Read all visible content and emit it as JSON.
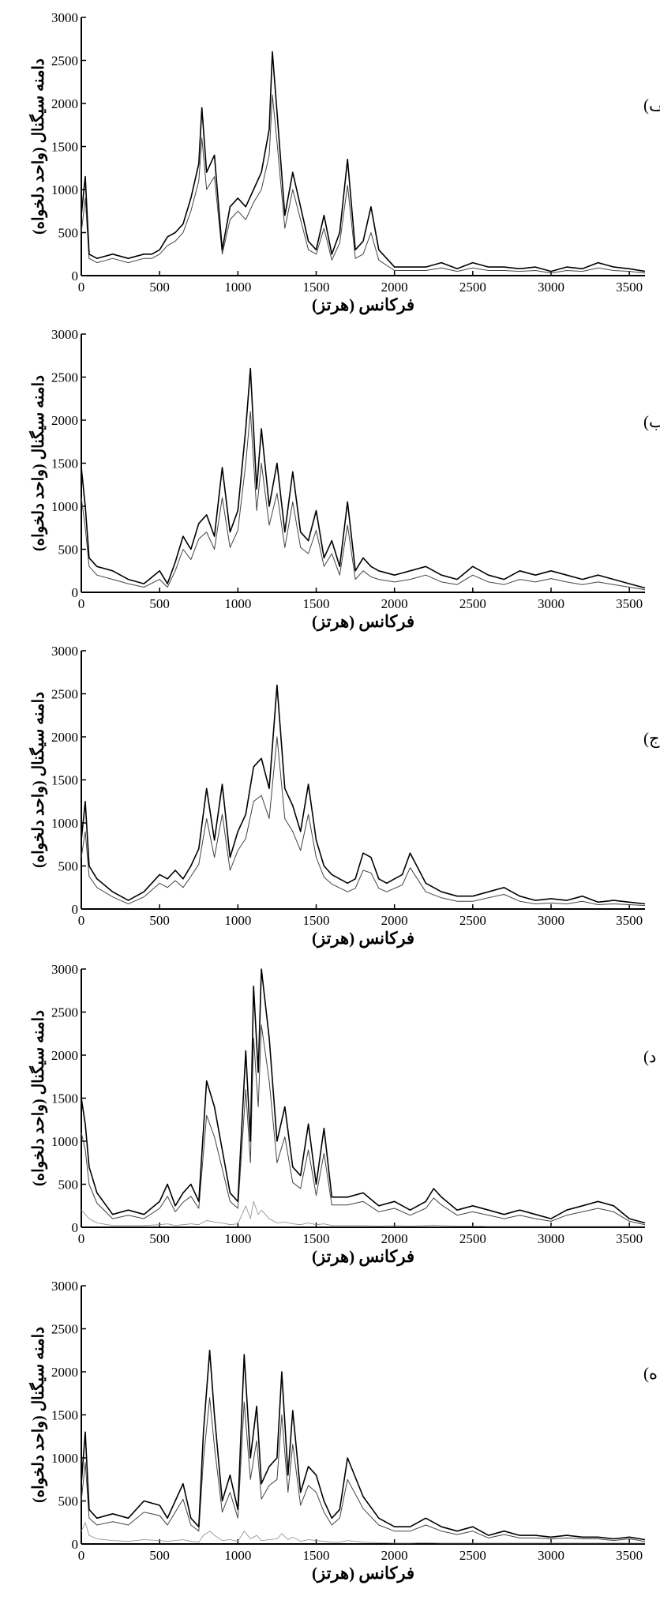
{
  "figure": {
    "y_label": "دامنه سیگنال (واحد دلخواه)",
    "x_label": "فرکانس (هرتز)"
  },
  "chart_data": [
    {
      "type": "line",
      "panel_label": "الف)",
      "xlabel": "فرکانس (هرتز)",
      "ylabel": "دامنه سیگنال (واحد دلخواه)",
      "xlim": [
        0,
        3600
      ],
      "ylim": [
        0,
        3000
      ],
      "xticks": [
        0,
        500,
        1000,
        1500,
        2000,
        2500,
        3000,
        3500
      ],
      "yticks": [
        0,
        500,
        1000,
        1500,
        2000,
        2500,
        3000
      ],
      "grid": false,
      "x": [
        0,
        25,
        50,
        100,
        200,
        300,
        400,
        450,
        500,
        550,
        600,
        650,
        700,
        750,
        770,
        800,
        850,
        900,
        950,
        1000,
        1050,
        1100,
        1150,
        1200,
        1220,
        1250,
        1300,
        1350,
        1400,
        1450,
        1500,
        1550,
        1600,
        1650,
        1700,
        1750,
        1800,
        1850,
        1900,
        2000,
        2100,
        2200,
        2300,
        2400,
        2500,
        2600,
        2700,
        2800,
        2900,
        3000,
        3100,
        3200,
        3300,
        3400,
        3500,
        3600
      ],
      "series": [
        {
          "values": [
            700,
            1150,
            250,
            200,
            250,
            200,
            250,
            250,
            300,
            450,
            500,
            600,
            900,
            1300,
            1950,
            1200,
            1400,
            300,
            800,
            900,
            800,
            1000,
            1200,
            1700,
            2600,
            1900,
            700,
            1200,
            800,
            400,
            300,
            700,
            250,
            500,
            1350,
            300,
            400,
            800,
            300,
            100,
            100,
            100,
            150,
            80,
            150,
            100,
            100,
            80,
            100,
            50,
            100,
            80,
            150,
            100,
            80,
            50
          ]
        },
        {
          "values": [
            500,
            900,
            200,
            150,
            200,
            150,
            200,
            200,
            250,
            350,
            400,
            500,
            750,
            1100,
            1600,
            1000,
            1150,
            250,
            650,
            750,
            650,
            850,
            1000,
            1400,
            2100,
            1550,
            550,
            1000,
            650,
            300,
            250,
            550,
            180,
            380,
            1050,
            200,
            250,
            500,
            180,
            60,
            60,
            60,
            90,
            50,
            90,
            60,
            60,
            50,
            60,
            30,
            60,
            50,
            90,
            60,
            50,
            30
          ]
        }
      ]
    },
    {
      "type": "line",
      "panel_label": "ب)",
      "xlabel": "فرکانس (هرتز)",
      "ylabel": "دامنه سیگنال (واحد دلخواه)",
      "xlim": [
        0,
        3600
      ],
      "ylim": [
        0,
        3000
      ],
      "xticks": [
        0,
        500,
        1000,
        1500,
        2000,
        2500,
        3000,
        3500
      ],
      "yticks": [
        0,
        500,
        1000,
        1500,
        2000,
        2500,
        3000
      ],
      "grid": false,
      "x": [
        0,
        25,
        50,
        100,
        200,
        300,
        400,
        500,
        550,
        600,
        650,
        700,
        750,
        800,
        850,
        900,
        950,
        1000,
        1050,
        1080,
        1120,
        1150,
        1200,
        1250,
        1300,
        1350,
        1400,
        1450,
        1500,
        1550,
        1600,
        1650,
        1700,
        1750,
        1800,
        1850,
        1900,
        2000,
        2100,
        2200,
        2300,
        2400,
        2500,
        2600,
        2700,
        2800,
        2900,
        3000,
        3100,
        3200,
        3300,
        3400,
        3500,
        3600
      ],
      "series": [
        {
          "values": [
            1450,
            1000,
            400,
            300,
            250,
            150,
            100,
            250,
            100,
            350,
            650,
            500,
            800,
            900,
            650,
            1450,
            700,
            950,
            1900,
            2600,
            1200,
            1900,
            1000,
            1500,
            700,
            1400,
            700,
            600,
            950,
            400,
            600,
            300,
            1050,
            250,
            400,
            300,
            250,
            200,
            250,
            300,
            200,
            150,
            300,
            200,
            150,
            250,
            200,
            250,
            200,
            150,
            200,
            150,
            100,
            50
          ]
        },
        {
          "values": [
            1100,
            750,
            300,
            200,
            150,
            100,
            60,
            150,
            60,
            250,
            500,
            380,
            620,
            700,
            500,
            1100,
            520,
            720,
            1500,
            2100,
            950,
            1500,
            780,
            1150,
            520,
            1050,
            520,
            450,
            720,
            300,
            450,
            200,
            780,
            150,
            250,
            180,
            150,
            120,
            150,
            200,
            120,
            90,
            200,
            120,
            90,
            150,
            120,
            160,
            120,
            90,
            120,
            90,
            60,
            30
          ]
        }
      ]
    },
    {
      "type": "line",
      "panel_label": "ج)",
      "xlabel": "فرکانس (هرتز)",
      "ylabel": "دامنه سیگنال (واحد دلخواه)",
      "xlim": [
        0,
        3600
      ],
      "ylim": [
        0,
        3000
      ],
      "xticks": [
        0,
        500,
        1000,
        1500,
        2000,
        2500,
        3000,
        3500
      ],
      "yticks": [
        0,
        500,
        1000,
        1500,
        2000,
        2500,
        3000
      ],
      "grid": false,
      "x": [
        0,
        25,
        50,
        100,
        200,
        300,
        400,
        500,
        550,
        600,
        650,
        700,
        750,
        800,
        850,
        900,
        950,
        1000,
        1050,
        1100,
        1150,
        1200,
        1250,
        1300,
        1350,
        1400,
        1450,
        1500,
        1550,
        1600,
        1700,
        1750,
        1800,
        1850,
        1900,
        1950,
        2000,
        2050,
        2100,
        2200,
        2300,
        2400,
        2500,
        2600,
        2700,
        2800,
        2900,
        3000,
        3100,
        3200,
        3300,
        3400,
        3500,
        3600
      ],
      "series": [
        {
          "values": [
            800,
            1250,
            500,
            350,
            200,
            100,
            200,
            400,
            350,
            450,
            350,
            500,
            700,
            1400,
            800,
            1450,
            600,
            900,
            1100,
            1650,
            1750,
            1400,
            2600,
            1400,
            1200,
            900,
            1450,
            800,
            500,
            400,
            300,
            350,
            650,
            600,
            350,
            300,
            350,
            400,
            650,
            300,
            200,
            150,
            150,
            200,
            250,
            150,
            100,
            120,
            100,
            150,
            80,
            100,
            80,
            60
          ]
        },
        {
          "values": [
            600,
            900,
            380,
            250,
            140,
            60,
            140,
            300,
            250,
            330,
            250,
            380,
            520,
            1050,
            600,
            1100,
            450,
            680,
            820,
            1250,
            1320,
            1050,
            2000,
            1050,
            900,
            680,
            1100,
            600,
            370,
            290,
            200,
            240,
            450,
            420,
            240,
            200,
            240,
            280,
            480,
            200,
            130,
            90,
            90,
            130,
            170,
            90,
            60,
            70,
            60,
            90,
            50,
            60,
            50,
            40
          ]
        }
      ]
    },
    {
      "type": "line",
      "panel_label": "د)",
      "xlabel": "فرکانس (هرتز)",
      "ylabel": "دامنه سیگنال (واحد دلخواه)",
      "xlim": [
        0,
        3600
      ],
      "ylim": [
        0,
        3000
      ],
      "xticks": [
        0,
        500,
        1000,
        1500,
        2000,
        2500,
        3000,
        3500
      ],
      "yticks": [
        0,
        500,
        1000,
        1500,
        2000,
        2500,
        3000
      ],
      "grid": false,
      "x": [
        0,
        25,
        50,
        100,
        200,
        300,
        400,
        500,
        550,
        600,
        650,
        700,
        750,
        800,
        850,
        900,
        950,
        1000,
        1050,
        1080,
        1100,
        1130,
        1150,
        1200,
        1250,
        1300,
        1350,
        1400,
        1450,
        1500,
        1550,
        1600,
        1700,
        1800,
        1900,
        2000,
        2100,
        2200,
        2250,
        2300,
        2400,
        2500,
        2600,
        2700,
        2800,
        2900,
        3000,
        3100,
        3200,
        3300,
        3400,
        3500,
        3600
      ],
      "series": [
        {
          "values": [
            1500,
            1200,
            700,
            400,
            150,
            200,
            150,
            300,
            500,
            250,
            400,
            500,
            300,
            1700,
            1400,
            900,
            400,
            300,
            2050,
            1000,
            2800,
            1800,
            3000,
            2200,
            1000,
            1400,
            700,
            600,
            1200,
            500,
            1150,
            350,
            350,
            400,
            250,
            300,
            200,
            300,
            450,
            350,
            200,
            250,
            200,
            150,
            200,
            150,
            100,
            200,
            250,
            300,
            250,
            100,
            50
          ]
        },
        {
          "values": [
            1100,
            900,
            500,
            280,
            100,
            140,
            100,
            220,
            360,
            180,
            290,
            360,
            220,
            1300,
            1050,
            680,
            300,
            220,
            1600,
            750,
            2200,
            1400,
            2350,
            1700,
            750,
            1050,
            520,
            450,
            900,
            370,
            860,
            260,
            260,
            300,
            180,
            220,
            140,
            220,
            340,
            260,
            140,
            180,
            140,
            100,
            140,
            100,
            70,
            140,
            180,
            220,
            180,
            70,
            30
          ]
        },
        {
          "values": [
            200,
            150,
            100,
            50,
            20,
            20,
            20,
            30,
            40,
            20,
            30,
            40,
            30,
            80,
            60,
            50,
            30,
            40,
            250,
            100,
            300,
            150,
            200,
            100,
            50,
            60,
            40,
            30,
            50,
            30,
            40,
            20,
            20,
            20,
            15,
            20,
            15,
            20,
            25,
            20,
            15,
            15,
            10,
            10,
            10,
            10,
            10,
            10,
            10,
            10,
            10,
            10,
            10
          ]
        }
      ]
    },
    {
      "type": "line",
      "panel_label": "ه)",
      "xlabel": "فرکانس (هرتز)",
      "ylabel": "دامنه سیگنال (واحد دلخواه)",
      "xlim": [
        0,
        3600
      ],
      "ylim": [
        0,
        3000
      ],
      "xticks": [
        0,
        500,
        1000,
        1500,
        2000,
        2500,
        3000,
        3500
      ],
      "yticks": [
        0,
        500,
        1000,
        1500,
        2000,
        2500,
        3000
      ],
      "grid": false,
      "x": [
        0,
        25,
        50,
        100,
        200,
        300,
        400,
        500,
        550,
        600,
        650,
        700,
        750,
        780,
        820,
        850,
        900,
        950,
        1000,
        1040,
        1080,
        1120,
        1150,
        1200,
        1250,
        1280,
        1320,
        1350,
        1400,
        1450,
        1500,
        1550,
        1600,
        1650,
        1700,
        1800,
        1900,
        2000,
        2100,
        2200,
        2300,
        2400,
        2500,
        2600,
        2700,
        2800,
        2900,
        3000,
        3100,
        3200,
        3300,
        3400,
        3500,
        3600
      ],
      "series": [
        {
          "values": [
            700,
            1300,
            400,
            300,
            350,
            300,
            500,
            450,
            300,
            500,
            700,
            300,
            200,
            1300,
            2250,
            1500,
            500,
            800,
            400,
            2200,
            1000,
            1600,
            700,
            900,
            1000,
            2000,
            800,
            1550,
            600,
            900,
            800,
            500,
            300,
            400,
            1000,
            550,
            300,
            200,
            200,
            300,
            200,
            150,
            200,
            100,
            150,
            100,
            100,
            80,
            100,
            80,
            80,
            60,
            80,
            50
          ]
        },
        {
          "values": [
            500,
            950,
            300,
            220,
            260,
            220,
            370,
            330,
            220,
            370,
            520,
            220,
            150,
            980,
            1700,
            1130,
            370,
            600,
            300,
            1650,
            750,
            1200,
            520,
            680,
            750,
            1500,
            600,
            1160,
            450,
            680,
            600,
            370,
            220,
            300,
            750,
            410,
            220,
            150,
            150,
            220,
            150,
            110,
            150,
            70,
            110,
            70,
            70,
            60,
            70,
            60,
            60,
            40,
            60,
            30
          ]
        },
        {
          "values": [
            150,
            250,
            100,
            60,
            40,
            30,
            50,
            40,
            30,
            40,
            50,
            30,
            20,
            100,
            150,
            100,
            40,
            50,
            30,
            150,
            60,
            100,
            40,
            50,
            60,
            120,
            50,
            80,
            30,
            50,
            40,
            30,
            20,
            20,
            40,
            20,
            15,
            10,
            10,
            15,
            10,
            10,
            10,
            10,
            10,
            10,
            10,
            10,
            10,
            10,
            10,
            10,
            10,
            10
          ]
        }
      ]
    }
  ]
}
